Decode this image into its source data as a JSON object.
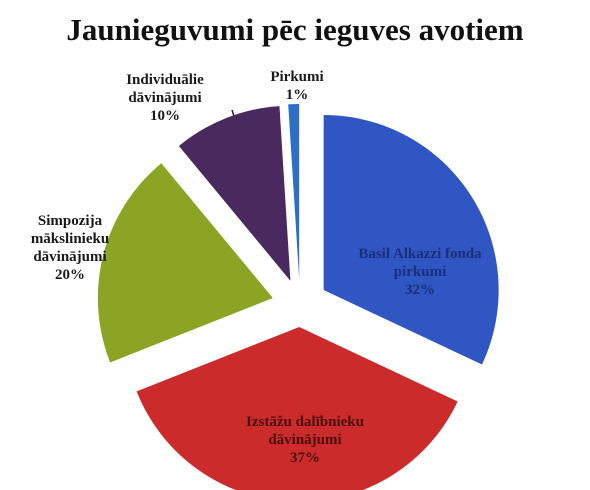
{
  "chart_data": {
    "type": "pie",
    "title": "Jaunieguvumi pēc ieguves avotiem",
    "categories": [
      "Basil Alkazzi fonda pirkumi",
      "Izstāžu dalībnieku dāvinājumi",
      "Simpozija mākslinieku dāvinājumi",
      "Individuālie dāvinājumi",
      "Pirkumi"
    ],
    "values": [
      32,
      37,
      20,
      10,
      1
    ],
    "value_labels": [
      "32%",
      "37%",
      "20%",
      "10%",
      "1%"
    ],
    "colors": [
      "#2f56c2",
      "#cc2b2b",
      "#8ba424",
      "#4a2a5e",
      "#2d6fc4"
    ]
  }
}
